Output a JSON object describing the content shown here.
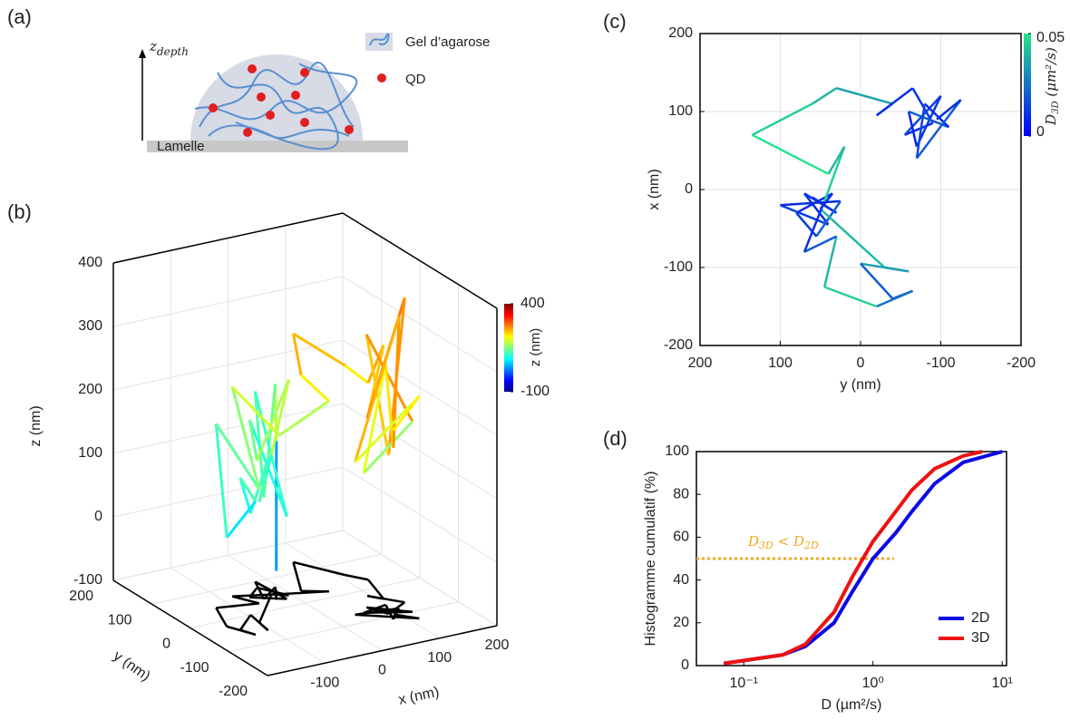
{
  "panel_labels": [
    "(a)",
    "(b)",
    "(c)",
    "(d)"
  ],
  "diagram": {
    "axis_label": [
      "z",
      "depth"
    ],
    "legend": [
      "Gel d’agarose",
      "QD"
    ],
    "substrate": "Lamelle"
  },
  "chart_data": [
    {
      "type": "line3d",
      "x_label": "x (nm)",
      "y_label": "y (nm)",
      "z_label": "z (nm)",
      "xlim": [
        -200,
        200
      ],
      "ylim": [
        -200,
        200
      ],
      "zlim": [
        -100,
        400
      ],
      "xticks": [
        -100,
        0,
        100,
        200
      ],
      "yticks": [
        200,
        100,
        0,
        -100,
        -200
      ],
      "zticks": [
        -100,
        0,
        100,
        200,
        300,
        400
      ],
      "x": [
        -10,
        -30,
        -5,
        -45,
        -20,
        -15,
        -60,
        -30,
        -5,
        -25,
        -100,
        -105,
        -95,
        -140,
        -130,
        -150,
        -125,
        -60,
        -80,
        -15,
        55,
        20,
        70,
        110,
        130,
        110,
        95,
        130,
        85,
        70,
        120,
        55,
        100,
        80,
        110,
        40,
        115,
        90
      ],
      "y": [
        60,
        30,
        70,
        40,
        100,
        25,
        55,
        80,
        35,
        50,
        -30,
        -60,
        0,
        -40,
        -65,
        -20,
        45,
        30,
        70,
        45,
        20,
        40,
        135,
        60,
        30,
        -40,
        -20,
        -65,
        -90,
        -55,
        -100,
        -70,
        -60,
        -110,
        -80,
        -70,
        -125,
        -95
      ],
      "z": [
        -70,
        150,
        220,
        60,
        200,
        30,
        180,
        100,
        240,
        120,
        90,
        170,
        60,
        140,
        110,
        40,
        190,
        80,
        230,
        150,
        200,
        240,
        260,
        230,
        210,
        300,
        180,
        380,
        150,
        330,
        200,
        120,
        280,
        170,
        360,
        140,
        250,
        190
      ],
      "shadow_color": "#000000",
      "colorbar_label": "z (nm)",
      "clim": [
        -100,
        400
      ],
      "cticks": [
        -100,
        400
      ],
      "grid": true
    },
    {
      "type": "line",
      "x_label": "y (nm)",
      "y_label": "x (nm)",
      "xlim": [
        200,
        -200
      ],
      "ylim": [
        -200,
        200
      ],
      "xticks": [
        200,
        100,
        0,
        -100,
        -200
      ],
      "yticks": [
        -200,
        -100,
        0,
        100,
        200
      ],
      "x": [
        60,
        30,
        70,
        40,
        100,
        25,
        55,
        80,
        35,
        50,
        -30,
        -60,
        0,
        -40,
        -65,
        -20,
        45,
        30,
        70,
        45,
        20,
        40,
        135,
        60,
        30,
        -40,
        -20,
        -65,
        -90,
        -55,
        -100,
        -70,
        -60,
        -110,
        -80,
        -70,
        -125,
        -95
      ],
      "values": [
        -10,
        -30,
        -5,
        -45,
        -20,
        -15,
        -60,
        -30,
        -5,
        -25,
        -100,
        -105,
        -95,
        -140,
        -130,
        -150,
        -125,
        -60,
        -80,
        -15,
        55,
        20,
        70,
        110,
        130,
        110,
        95,
        130,
        85,
        70,
        120,
        55,
        100,
        80,
        110,
        40,
        115,
        90
      ],
      "color_values": [
        0.01,
        0.008,
        0.012,
        0.01,
        0.015,
        0.01,
        0.02,
        0.012,
        0.01,
        0.008,
        0.04,
        0.03,
        0.035,
        0.02,
        0.015,
        0.025,
        0.045,
        0.04,
        0.02,
        0.01,
        0.045,
        0.04,
        0.05,
        0.045,
        0.04,
        0.035,
        0.04,
        0.01,
        0.012,
        0.01,
        0.015,
        0.012,
        0.008,
        0.02,
        0.01,
        0.015,
        0.02,
        0.01
      ],
      "colorbar_label": [
        "D",
        "3D",
        " (μm²/s)"
      ],
      "clim": [
        0,
        0.05
      ],
      "cticks": [
        0,
        0.05
      ],
      "grid": true
    },
    {
      "type": "line",
      "log_x": true,
      "x_label": "D (µm²/s)",
      "y_label": "Histogramme cumulatif (%)",
      "xlim": [
        0.043,
        10.8
      ],
      "ylim": [
        0,
        100
      ],
      "xticks": [
        {
          "value": 0.1,
          "label": "10⁻¹"
        },
        {
          "value": 1,
          "label": "10⁰"
        },
        {
          "value": 10,
          "label": "10¹"
        }
      ],
      "yticks": [
        0,
        20,
        40,
        60,
        80,
        100
      ],
      "series": [
        {
          "name": "2D",
          "color": "#0a0ae6",
          "x": [
            0.07,
            0.2,
            0.3,
            0.5,
            0.7,
            1,
            1.5,
            2,
            3,
            5,
            10
          ],
          "values": [
            1,
            5,
            9,
            20,
            35,
            50,
            62,
            72,
            85,
            95,
            100
          ]
        },
        {
          "name": "3D",
          "color": "#ee1111",
          "x": [
            0.07,
            0.2,
            0.3,
            0.5,
            0.7,
            1,
            1.5,
            2,
            3,
            5,
            7
          ],
          "values": [
            1,
            5,
            10,
            25,
            42,
            58,
            72,
            82,
            92,
            98,
            100
          ]
        }
      ],
      "legend": "lower right",
      "hline": {
        "value": 50,
        "x_end": 1.45,
        "color": "#f0a820"
      },
      "annotation": [
        "D",
        "3D",
        " < D",
        "2D"
      ]
    }
  ]
}
